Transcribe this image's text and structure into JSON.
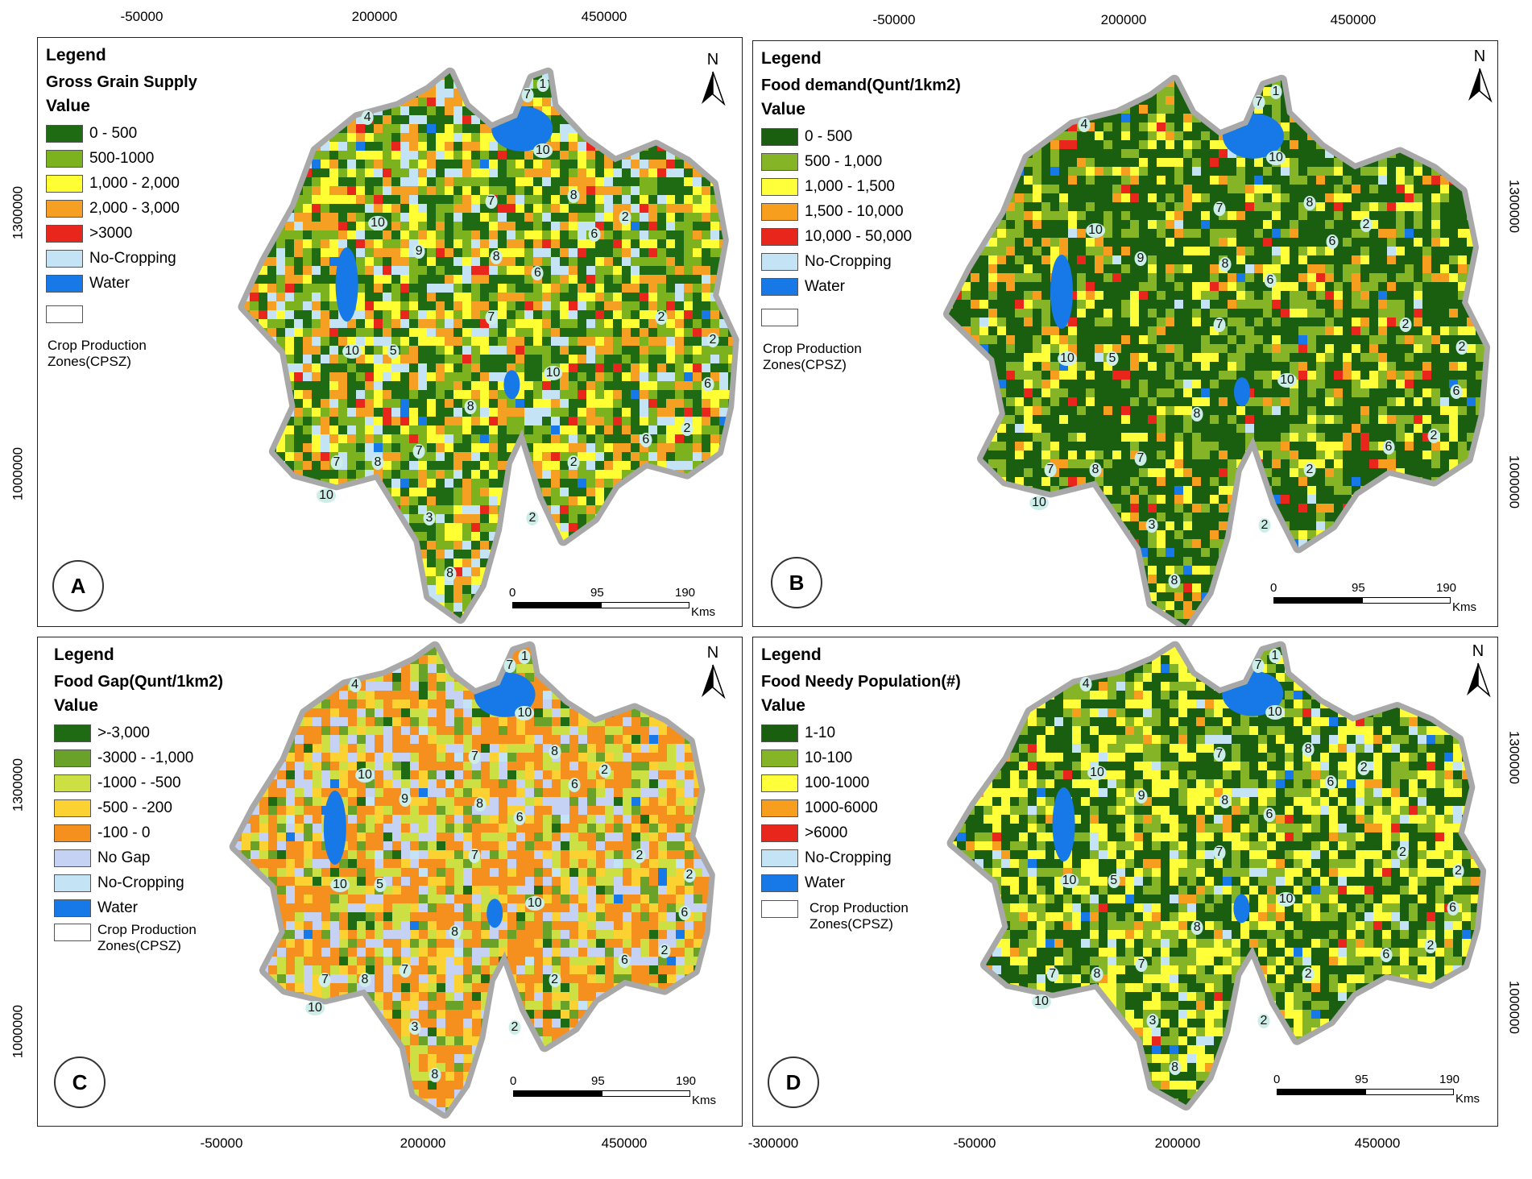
{
  "ticks": {
    "top_left": [
      "-50000",
      "200000",
      "450000"
    ],
    "top_right": [
      "-50000",
      "200000",
      "450000"
    ],
    "bottom_left": [
      "-50000",
      "200000",
      "450000"
    ],
    "bottom_right": [
      "-300000",
      "-50000",
      "200000",
      "450000"
    ],
    "left_top": [
      "1300000",
      "1000000"
    ],
    "left_bottom": [
      "1300000",
      "1000000"
    ],
    "right_top": [
      "1300000",
      "1000000"
    ],
    "right_bottom": [
      "1300000",
      "1000000"
    ]
  },
  "north_label": "N",
  "scale": {
    "s0": "0",
    "s1": "95",
    "s2": "190",
    "unit": "Kms"
  },
  "zones_label": "Crop Production Zones(CPSZ)",
  "panels": {
    "a": {
      "badge": "A",
      "legend_title": "Legend",
      "layer_title": "Gross Grain Supply",
      "value_label": "Value",
      "items": [
        {
          "label": "0 - 500",
          "color": "#1e6b14"
        },
        {
          "label": "500-1000",
          "color": "#7db21f"
        },
        {
          "label": "1,000 - 2,000",
          "color": "#ffff33"
        },
        {
          "label": "2,000 - 3,000",
          "color": "#f5a023"
        },
        {
          "label": ">3000",
          "color": "#e8261c"
        },
        {
          "label": "No-Cropping",
          "color": "#c4e4f6"
        },
        {
          "label": "Water",
          "color": "#1779e8"
        }
      ]
    },
    "b": {
      "badge": "B",
      "legend_title": "Legend",
      "layer_title": "Food demand(Qunt/1km2)",
      "value_label": "Value",
      "items": [
        {
          "label": "0 - 500",
          "color": "#1a5f0f"
        },
        {
          "label": "500 - 1,000",
          "color": "#85b527"
        },
        {
          "label": "1,000 - 1,500",
          "color": "#ffff3a"
        },
        {
          "label": "1,500 - 10,000",
          "color": "#f79e1e"
        },
        {
          "label": "10,000 - 50,000",
          "color": "#e8261c"
        },
        {
          "label": "No-Cropping",
          "color": "#c4e4f6"
        },
        {
          "label": "Water",
          "color": "#1779e8"
        }
      ]
    },
    "c": {
      "badge": "C",
      "legend_title": "Legend",
      "layer_title": "Food Gap(Qunt/1km2)",
      "value_label": "Value",
      "items": [
        {
          "label": ">-3,000",
          "color": "#1e6b14"
        },
        {
          "label": "-3000 - -1,000",
          "color": "#6aa128"
        },
        {
          "label": "-1000 - -500",
          "color": "#cde043"
        },
        {
          "label": "-500 - -200",
          "color": "#fbd232"
        },
        {
          "label": "-100 - 0",
          "color": "#f5901f"
        },
        {
          "label": "No Gap",
          "color": "#c6d2f4"
        },
        {
          "label": "No-Cropping",
          "color": "#c4e4f6"
        },
        {
          "label": "Water",
          "color": "#1779e8"
        }
      ]
    },
    "d": {
      "badge": "D",
      "legend_title": "Legend",
      "layer_title": "Food Needy Population(#)",
      "value_label": "Value",
      "items": [
        {
          "label": "1-10",
          "color": "#1a5f0f"
        },
        {
          "label": "10-100",
          "color": "#85b527"
        },
        {
          "label": "100-1000",
          "color": "#ffff3a"
        },
        {
          "label": "1000-6000",
          "color": "#f79e1e"
        },
        {
          "label": ">6000",
          "color": "#e8261c"
        },
        {
          "label": "No-Cropping",
          "color": "#c4e4f6"
        },
        {
          "label": "Water",
          "color": "#1779e8"
        }
      ]
    }
  },
  "zone_labels": [
    "1",
    "2",
    "2",
    "2",
    "2",
    "2",
    "2",
    "3",
    "4",
    "5",
    "6",
    "6",
    "6",
    "6",
    "7",
    "7",
    "7",
    "7",
    "7",
    "8",
    "8",
    "8",
    "8",
    "8",
    "9",
    "10",
    "10",
    "10",
    "10",
    "10"
  ],
  "map_colors": {
    "a": [
      "#1e6b14",
      "#7db21f",
      "#ffff33",
      "#f5a023",
      "#e8261c",
      "#c4e4f6",
      "#1779e8"
    ],
    "b": [
      "#1a5f0f",
      "#85b527",
      "#ffff3a",
      "#f79e1e",
      "#e8261c",
      "#c4e4f6",
      "#1779e8"
    ],
    "c": [
      "#1e6b14",
      "#6aa128",
      "#cde043",
      "#fbd232",
      "#f5901f",
      "#c6d2f4",
      "#c4e4f6",
      "#1779e8"
    ],
    "d": [
      "#1a5f0f",
      "#85b527",
      "#ffff3a",
      "#f79e1e",
      "#e8261c",
      "#c4e4f6",
      "#1779e8"
    ]
  }
}
